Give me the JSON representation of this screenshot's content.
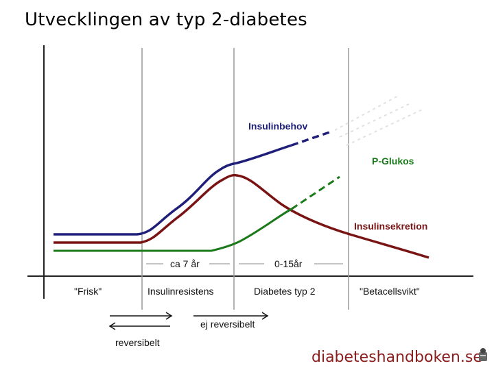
{
  "title": "Utvecklingen av typ 2-diabetes",
  "curves": {
    "insulinbehov": {
      "label": "Insulinbehov",
      "color": "#1f1f7a"
    },
    "p_glukos": {
      "label": "P-Glukos",
      "color": "#1a7a1a"
    },
    "insulinsekretion": {
      "label": "Insulinsekretion",
      "color": "#7a1414"
    }
  },
  "durations": {
    "first": "ca 7 år",
    "second": "0-15år"
  },
  "stages": [
    "\"Frisk\"",
    "Insulinresistens",
    "Diabetes typ 2",
    "\"Betacellsvikt\""
  ],
  "arrows": {
    "forward": "ej reversibelt",
    "backward": "reversibelt"
  },
  "site": "diabeteshandboken.se"
}
